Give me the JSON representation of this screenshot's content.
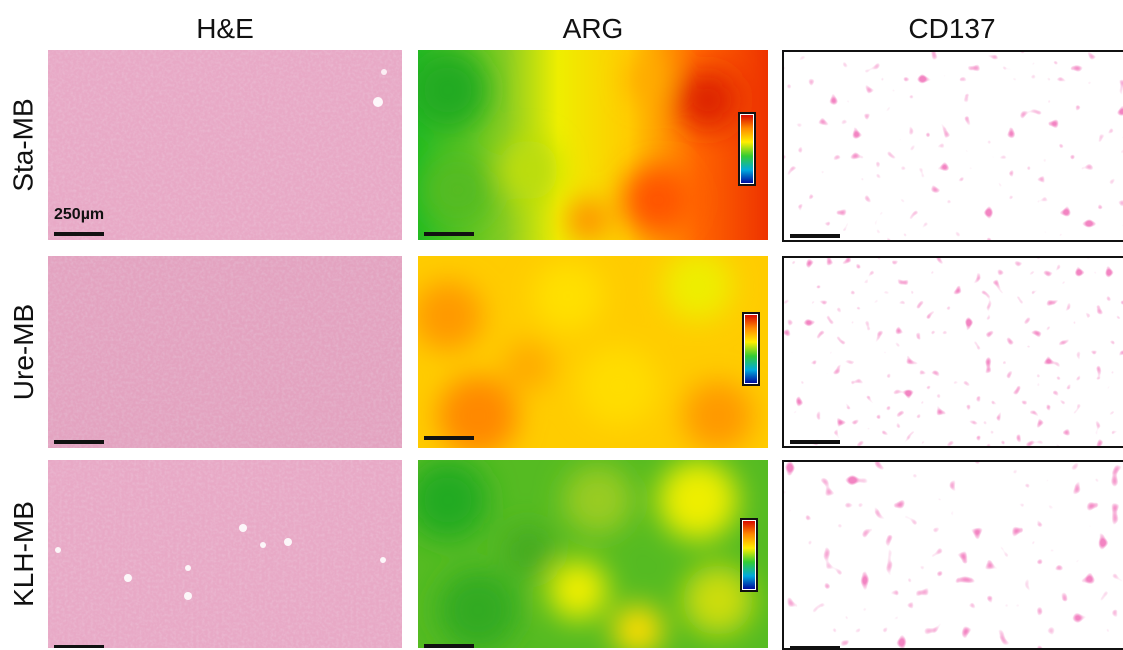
{
  "columns": [
    "H&E",
    "ARG",
    "CD137"
  ],
  "rows": [
    "Sta-MB",
    "Ure-MB",
    "KLH-MB"
  ],
  "scale_label": "250µm",
  "colors": {
    "he_base": "#e8a9c6",
    "he_fiber": "#d58fb3",
    "he_vessel": "#ffffff",
    "cd137_spot": "#e23b8a",
    "colorbar_top": "#d40000",
    "colorbar_bottom": "#000099"
  }
}
